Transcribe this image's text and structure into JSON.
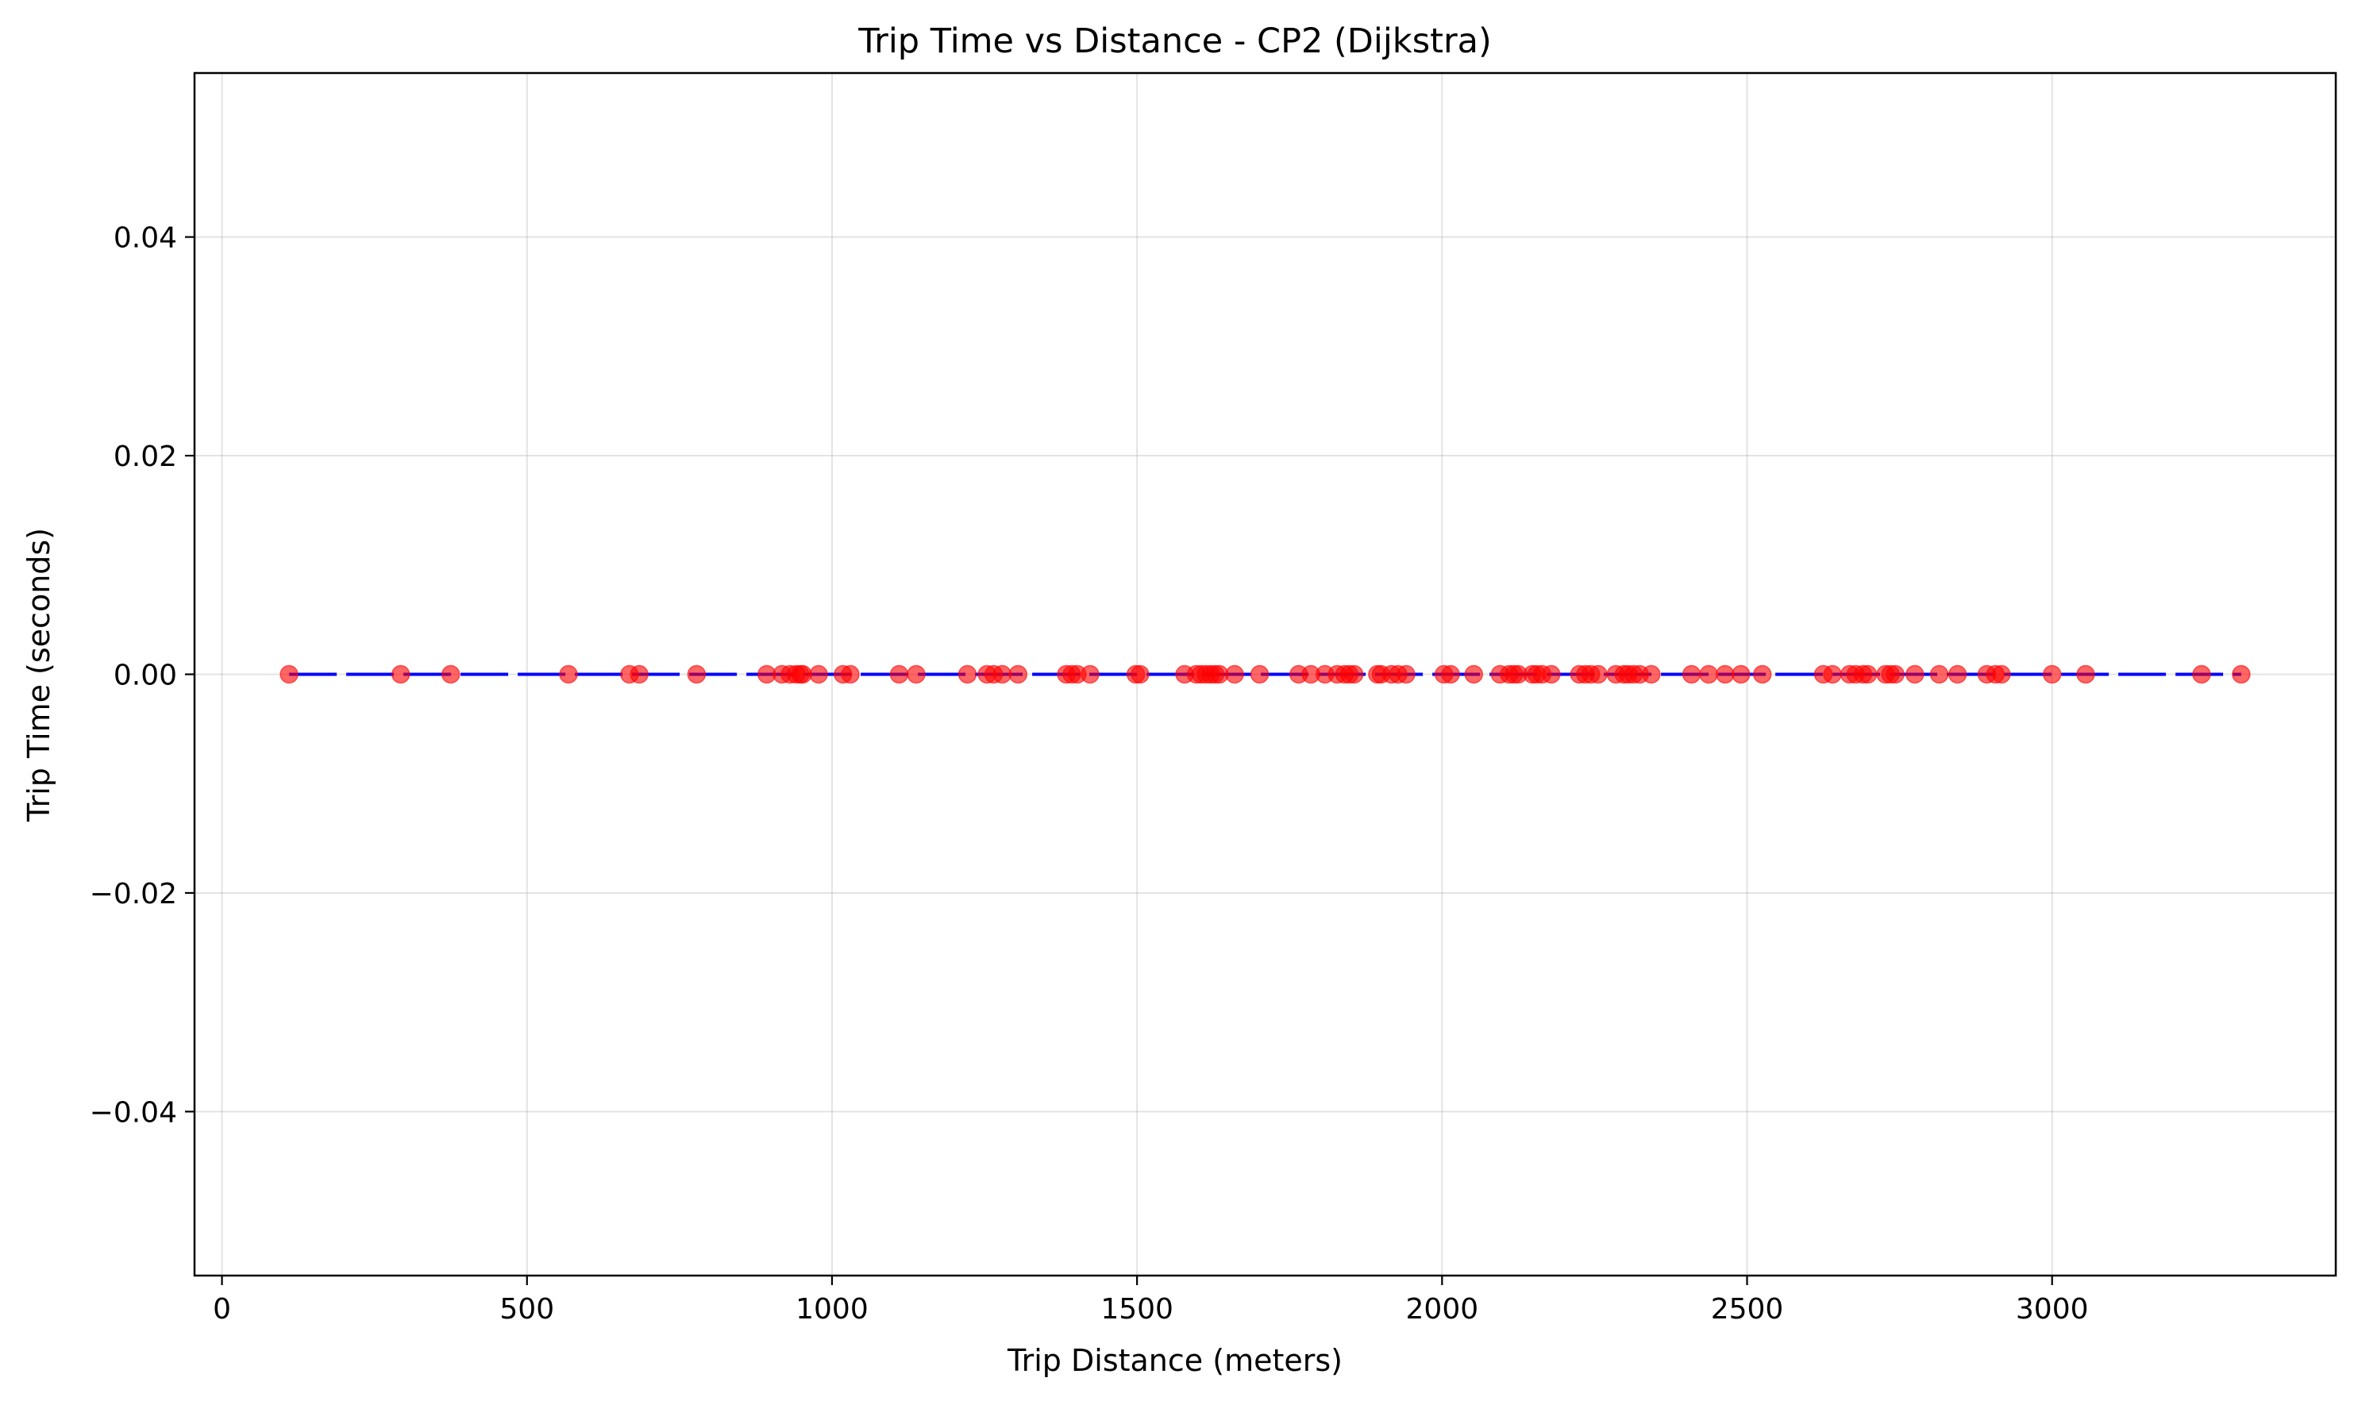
{
  "chart_data": {
    "type": "scatter",
    "title": "Trip Time vs Distance - CP2 (Dijkstra)",
    "xlabel": "Trip Distance (meters)",
    "ylabel": "Trip Time (seconds)",
    "xlim": [
      -45,
      3465
    ],
    "ylim": [
      -0.055,
      0.055
    ],
    "xticks": [
      0,
      500,
      1000,
      1500,
      2000,
      2500,
      3000
    ],
    "xtick_labels": [
      "0",
      "500",
      "1000",
      "1500",
      "2000",
      "2500",
      "3000"
    ],
    "yticks": [
      0.04,
      0.02,
      0.0,
      -0.02,
      -0.04
    ],
    "ytick_labels": [
      "0.04",
      "0.02",
      "0.00",
      "−0.02",
      "−0.04"
    ],
    "grid": true,
    "colors": {
      "points": "#ff0000",
      "trend_line": "#0000ff"
    },
    "trend_line": {
      "style": "dashed",
      "x": [
        110,
        3310
      ],
      "y": [
        0.0,
        0.0
      ]
    },
    "series": [
      {
        "x": [
          110,
          293,
          375,
          568,
          668,
          684,
          778,
          893,
          918,
          931,
          941,
          948,
          952,
          978,
          1018,
          1030,
          1110,
          1138,
          1222,
          1254,
          1265,
          1279,
          1305,
          1384,
          1393,
          1402,
          1423,
          1498,
          1505,
          1578,
          1597,
          1605,
          1613,
          1621,
          1628,
          1635,
          1660,
          1701,
          1765,
          1785,
          1808,
          1828,
          1840,
          1848,
          1856,
          1894,
          1900,
          1917,
          1928,
          1941,
          2003,
          2014,
          2052,
          2095,
          2110,
          2118,
          2125,
          2148,
          2155,
          2164,
          2179,
          2225,
          2235,
          2244,
          2256,
          2285,
          2298,
          2305,
          2314,
          2324,
          2343,
          2409,
          2437,
          2464,
          2490,
          2525,
          2625,
          2640,
          2668,
          2678,
          2690,
          2698,
          2727,
          2735,
          2743,
          2775,
          2815,
          2845,
          2893,
          2907,
          2917,
          3000,
          3055,
          3245,
          3310
        ],
        "y": [
          0.0,
          0.0,
          0.0,
          0.0,
          0.0,
          0.0,
          0.0,
          0.0,
          0.0,
          0.0,
          0.0,
          0.0,
          0.0,
          0.0,
          0.0,
          0.0,
          0.0,
          0.0,
          0.0,
          0.0,
          0.0,
          0.0,
          0.0,
          0.0,
          0.0,
          0.0,
          0.0,
          0.0,
          0.0,
          0.0,
          0.0,
          0.0,
          0.0,
          0.0,
          0.0,
          0.0,
          0.0,
          0.0,
          0.0,
          0.0,
          0.0,
          0.0,
          0.0,
          0.0,
          0.0,
          0.0,
          0.0,
          0.0,
          0.0,
          0.0,
          0.0,
          0.0,
          0.0,
          0.0,
          0.0,
          0.0,
          0.0,
          0.0,
          0.0,
          0.0,
          0.0,
          0.0,
          0.0,
          0.0,
          0.0,
          0.0,
          0.0,
          0.0,
          0.0,
          0.0,
          0.0,
          0.0,
          0.0,
          0.0,
          0.0,
          0.0,
          0.0,
          0.0,
          0.0,
          0.0,
          0.0,
          0.0,
          0.0,
          0.0,
          0.0,
          0.0,
          0.0,
          0.0,
          0.0,
          0.0,
          0.0,
          0.0,
          0.0,
          0.0,
          0.0
        ]
      }
    ]
  }
}
